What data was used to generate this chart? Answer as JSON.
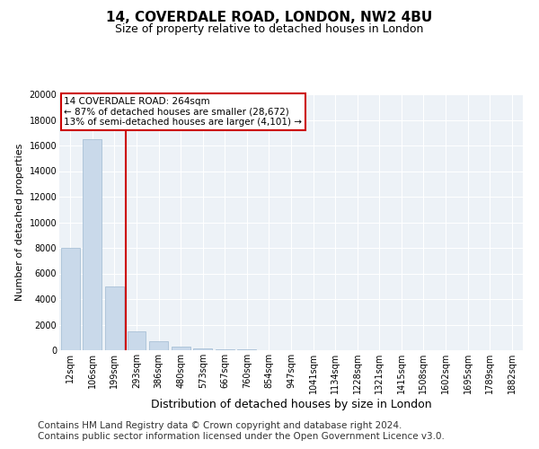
{
  "title": "14, COVERDALE ROAD, LONDON, NW2 4BU",
  "subtitle": "Size of property relative to detached houses in London",
  "xlabel": "Distribution of detached houses by size in London",
  "ylabel": "Number of detached properties",
  "footer_line1": "Contains HM Land Registry data © Crown copyright and database right 2024.",
  "footer_line2": "Contains public sector information licensed under the Open Government Licence v3.0.",
  "bar_labels": [
    "12sqm",
    "106sqm",
    "199sqm",
    "293sqm",
    "386sqm",
    "480sqm",
    "573sqm",
    "667sqm",
    "760sqm",
    "854sqm",
    "947sqm",
    "1041sqm",
    "1134sqm",
    "1228sqm",
    "1321sqm",
    "1415sqm",
    "1508sqm",
    "1602sqm",
    "1695sqm",
    "1789sqm",
    "1882sqm"
  ],
  "bar_values": [
    8000,
    16500,
    5000,
    1500,
    700,
    300,
    150,
    100,
    50,
    0,
    0,
    0,
    0,
    0,
    0,
    0,
    0,
    0,
    0,
    0,
    0
  ],
  "bar_color": "#c9d9ea",
  "bar_edge_color": "#a8c0d6",
  "ylim": [
    0,
    20000
  ],
  "yticks": [
    0,
    2000,
    4000,
    6000,
    8000,
    10000,
    12000,
    14000,
    16000,
    18000,
    20000
  ],
  "red_line_x": 2.5,
  "annotation_text": "14 COVERDALE ROAD: 264sqm\n← 87% of detached houses are smaller (28,672)\n13% of semi-detached houses are larger (4,101) →",
  "annotation_box_color": "#ffffff",
  "annotation_box_edge_color": "#cc0000",
  "red_line_color": "#cc0000",
  "background_color": "#ffffff",
  "plot_bg_color": "#edf2f7",
  "grid_color": "#ffffff",
  "title_fontsize": 11,
  "subtitle_fontsize": 9,
  "ylabel_fontsize": 8,
  "xlabel_fontsize": 9,
  "tick_fontsize": 7,
  "annot_fontsize": 7.5,
  "footer_fontsize": 7.5
}
